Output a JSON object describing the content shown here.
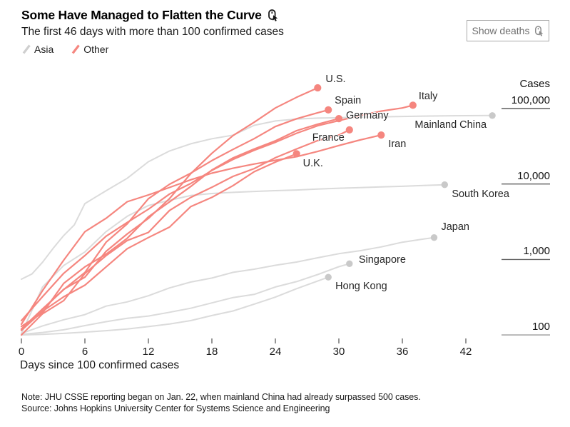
{
  "header": {
    "title": "Some Have Managed to Flatten the Curve",
    "subtitle": "The first 46 days with more than 100 confirmed cases",
    "title_icon": "tap-cursor-icon"
  },
  "controls": {
    "show_deaths_label": "Show deaths",
    "button_icon": "tap-cursor-icon"
  },
  "legend": [
    {
      "label": "Asia",
      "color": "#D9D9D9"
    },
    {
      "label": "Other",
      "color": "#F5867F"
    }
  ],
  "chart_data": {
    "type": "line",
    "x_axis": {
      "label": "Days since 100 confirmed cases",
      "ticks": [
        0,
        6,
        12,
        18,
        24,
        30,
        36,
        42
      ],
      "range": [
        0,
        46
      ]
    },
    "y_axis": {
      "label": "Cases",
      "scale": "log",
      "ticks": [
        {
          "label": "100,000",
          "value": 100000
        },
        {
          "label": "10,000",
          "value": 10000
        },
        {
          "label": "1,000",
          "value": 1000
        },
        {
          "label": "100",
          "value": 100
        }
      ],
      "range": [
        100,
        200000
      ]
    },
    "colors": {
      "asia": "#DBDBDB",
      "asia_dot": "#C9C9C9",
      "other": "#F5867F",
      "other_dot": "#F5867F"
    },
    "series": [
      {
        "id": "mainland-china",
        "label": "Mainland China",
        "group": "asia",
        "label_pos": {
          "dx": -8,
          "dy": 5,
          "align": "right"
        },
        "points": [
          [
            0,
            548
          ],
          [
            1,
            643
          ],
          [
            2,
            920
          ],
          [
            3,
            1406
          ],
          [
            4,
            2075
          ],
          [
            5,
            2877
          ],
          [
            6,
            5509
          ],
          [
            8,
            8141
          ],
          [
            10,
            11891
          ],
          [
            12,
            19716
          ],
          [
            14,
            27440
          ],
          [
            16,
            34110
          ],
          [
            18,
            39829
          ],
          [
            20,
            44386
          ],
          [
            22,
            59895
          ],
          [
            24,
            68413
          ],
          [
            26,
            72434
          ],
          [
            28,
            74619
          ],
          [
            30,
            75550
          ],
          [
            32,
            77022
          ],
          [
            34,
            77754
          ],
          [
            36,
            78600
          ],
          [
            38,
            79356
          ],
          [
            40,
            80136
          ],
          [
            42,
            80386
          ],
          [
            44.5,
            80735
          ]
        ]
      },
      {
        "id": "south-korea",
        "label": "South Korea",
        "group": "asia",
        "label_pos": {
          "dx": 10,
          "dy": 5,
          "align": "left"
        },
        "points": [
          [
            0,
            104
          ],
          [
            2,
            433
          ],
          [
            4,
            833
          ],
          [
            6,
            1261
          ],
          [
            8,
            2337
          ],
          [
            10,
            3736
          ],
          [
            12,
            5186
          ],
          [
            14,
            6088
          ],
          [
            16,
            7041
          ],
          [
            18,
            7478
          ],
          [
            20,
            7755
          ],
          [
            22,
            7979
          ],
          [
            24,
            8162
          ],
          [
            26,
            8320
          ],
          [
            28,
            8565
          ],
          [
            30,
            8799
          ],
          [
            32,
            8961
          ],
          [
            34,
            9137
          ],
          [
            36,
            9332
          ],
          [
            38,
            9583
          ],
          [
            40,
            9786
          ]
        ]
      },
      {
        "id": "japan",
        "label": "Japan",
        "group": "asia",
        "label_pos": {
          "dx": 10,
          "dy": -23,
          "align": "left"
        },
        "points": [
          [
            0,
            105
          ],
          [
            2,
            132
          ],
          [
            4,
            159
          ],
          [
            6,
            186
          ],
          [
            8,
            241
          ],
          [
            10,
            274
          ],
          [
            12,
            331
          ],
          [
            14,
            420
          ],
          [
            16,
            502
          ],
          [
            18,
            568
          ],
          [
            20,
            675
          ],
          [
            22,
            743
          ],
          [
            24,
            839
          ],
          [
            26,
            924
          ],
          [
            28,
            1054
          ],
          [
            30,
            1193
          ],
          [
            32,
            1307
          ],
          [
            34,
            1468
          ],
          [
            36,
            1693
          ],
          [
            38,
            1866
          ],
          [
            39,
            1953
          ]
        ]
      },
      {
        "id": "singapore",
        "label": "Singapore",
        "group": "asia",
        "label_pos": {
          "dx": 13,
          "dy": -13,
          "align": "left"
        },
        "points": [
          [
            0,
            102
          ],
          [
            2,
            108
          ],
          [
            4,
            117
          ],
          [
            6,
            133
          ],
          [
            8,
            150
          ],
          [
            10,
            166
          ],
          [
            12,
            178
          ],
          [
            14,
            200
          ],
          [
            16,
            226
          ],
          [
            18,
            266
          ],
          [
            20,
            313
          ],
          [
            22,
            345
          ],
          [
            24,
            432
          ],
          [
            26,
            509
          ],
          [
            28,
            632
          ],
          [
            30,
            802
          ],
          [
            31,
            879
          ]
        ]
      },
      {
        "id": "hong-kong",
        "label": "Hong Kong",
        "group": "asia",
        "label_pos": {
          "dx": 10,
          "dy": 5,
          "align": "left"
        },
        "points": [
          [
            0,
            100
          ],
          [
            2,
            102
          ],
          [
            4,
            105
          ],
          [
            6,
            109
          ],
          [
            8,
            114
          ],
          [
            10,
            120
          ],
          [
            12,
            129
          ],
          [
            14,
            140
          ],
          [
            16,
            155
          ],
          [
            18,
            181
          ],
          [
            20,
            208
          ],
          [
            22,
            256
          ],
          [
            24,
            317
          ],
          [
            26,
            410
          ],
          [
            28,
            518
          ],
          [
            29,
            582
          ]
        ]
      },
      {
        "id": "us",
        "label": "U.S.",
        "group": "other",
        "label_pos": {
          "dx": 11,
          "dy": -20,
          "align": "left"
        },
        "points": [
          [
            0,
            118
          ],
          [
            2,
            217
          ],
          [
            4,
            402
          ],
          [
            6,
            583
          ],
          [
            8,
            1281
          ],
          [
            10,
            2179
          ],
          [
            12,
            3499
          ],
          [
            14,
            6421
          ],
          [
            16,
            13677
          ],
          [
            18,
            25489
          ],
          [
            20,
            43847
          ],
          [
            22,
            65778
          ],
          [
            24,
            101657
          ],
          [
            26,
            140886
          ],
          [
            28,
            188172
          ]
        ]
      },
      {
        "id": "spain",
        "label": "Spain",
        "group": "other",
        "label_pos": {
          "dx": 9,
          "dy": -21,
          "align": "left"
        },
        "points": [
          [
            0,
            120
          ],
          [
            2,
            222
          ],
          [
            4,
            400
          ],
          [
            6,
            673
          ],
          [
            8,
            1695
          ],
          [
            10,
            2965
          ],
          [
            12,
            6391
          ],
          [
            14,
            9942
          ],
          [
            16,
            13910
          ],
          [
            18,
            20410
          ],
          [
            20,
            28768
          ],
          [
            22,
            39885
          ],
          [
            24,
            57786
          ],
          [
            26,
            73235
          ],
          [
            28,
            87956
          ],
          [
            29,
            95923
          ]
        ]
      },
      {
        "id": "italy",
        "label": "Italy",
        "group": "other",
        "label_pos": {
          "dx": 8,
          "dy": -20,
          "align": "left"
        },
        "points": [
          [
            0,
            155
          ],
          [
            2,
            322
          ],
          [
            4,
            655
          ],
          [
            6,
            1128
          ],
          [
            8,
            2036
          ],
          [
            10,
            3089
          ],
          [
            12,
            4636
          ],
          [
            14,
            7375
          ],
          [
            16,
            10149
          ],
          [
            18,
            15113
          ],
          [
            20,
            21157
          ],
          [
            22,
            27980
          ],
          [
            24,
            35713
          ],
          [
            26,
            47021
          ],
          [
            28,
            59138
          ],
          [
            30,
            69176
          ],
          [
            32,
            80589
          ],
          [
            34,
            92472
          ],
          [
            36,
            101739
          ],
          [
            37,
            110574
          ]
        ]
      },
      {
        "id": "germany",
        "label": "Germany",
        "group": "other",
        "label_pos": {
          "dx": 10,
          "dy": -12,
          "align": "left"
        },
        "points": [
          [
            0,
            130
          ],
          [
            2,
            196
          ],
          [
            4,
            482
          ],
          [
            6,
            799
          ],
          [
            8,
            1176
          ],
          [
            10,
            1908
          ],
          [
            12,
            3675
          ],
          [
            14,
            5795
          ],
          [
            16,
            9257
          ],
          [
            18,
            15320
          ],
          [
            20,
            22213
          ],
          [
            22,
            29056
          ],
          [
            24,
            37323
          ],
          [
            26,
            50871
          ],
          [
            28,
            62095
          ],
          [
            30,
            73522
          ]
        ]
      },
      {
        "id": "france",
        "label": "France",
        "group": "other",
        "label_pos": {
          "dx": -7,
          "dy": 3,
          "align": "right"
        },
        "points": [
          [
            0,
            100
          ],
          [
            2,
            191
          ],
          [
            4,
            285
          ],
          [
            6,
            653
          ],
          [
            8,
            1126
          ],
          [
            10,
            1784
          ],
          [
            12,
            2281
          ],
          [
            14,
            4469
          ],
          [
            16,
            6633
          ],
          [
            18,
            9043
          ],
          [
            20,
            12612
          ],
          [
            22,
            16018
          ],
          [
            24,
            22304
          ],
          [
            26,
            29155
          ],
          [
            28,
            37575
          ],
          [
            30,
            44550
          ],
          [
            31,
            52128
          ]
        ]
      },
      {
        "id": "iran",
        "label": "Iran",
        "group": "other",
        "label_pos": {
          "dx": 10,
          "dy": 5,
          "align": "left"
        },
        "points": [
          [
            0,
            139
          ],
          [
            2,
            388
          ],
          [
            4,
            978
          ],
          [
            6,
            2336
          ],
          [
            8,
            3513
          ],
          [
            10,
            5823
          ],
          [
            12,
            7161
          ],
          [
            14,
            9000
          ],
          [
            16,
            11364
          ],
          [
            18,
            13938
          ],
          [
            20,
            16169
          ],
          [
            22,
            18407
          ],
          [
            24,
            20610
          ],
          [
            26,
            23049
          ],
          [
            28,
            27017
          ],
          [
            30,
            32332
          ],
          [
            32,
            38309
          ],
          [
            34,
            44605
          ]
        ]
      },
      {
        "id": "uk",
        "label": "U.K.",
        "group": "other",
        "label_pos": {
          "dx": 9,
          "dy": 6,
          "align": "left"
        },
        "points": [
          [
            0,
            115
          ],
          [
            2,
            206
          ],
          [
            4,
            321
          ],
          [
            6,
            456
          ],
          [
            8,
            798
          ],
          [
            10,
            1391
          ],
          [
            12,
            1950
          ],
          [
            14,
            2689
          ],
          [
            16,
            5018
          ],
          [
            18,
            6650
          ],
          [
            20,
            9529
          ],
          [
            22,
            14543
          ],
          [
            24,
            19522
          ],
          [
            26,
            25150
          ]
        ]
      }
    ]
  },
  "footer": {
    "note": "Note: JHU CSSE reporting began on Jan. 22, when mainland China had already surpassed 500 cases.",
    "source": "Source: Johns Hopkins University Center for Systems Science and Engineering"
  }
}
